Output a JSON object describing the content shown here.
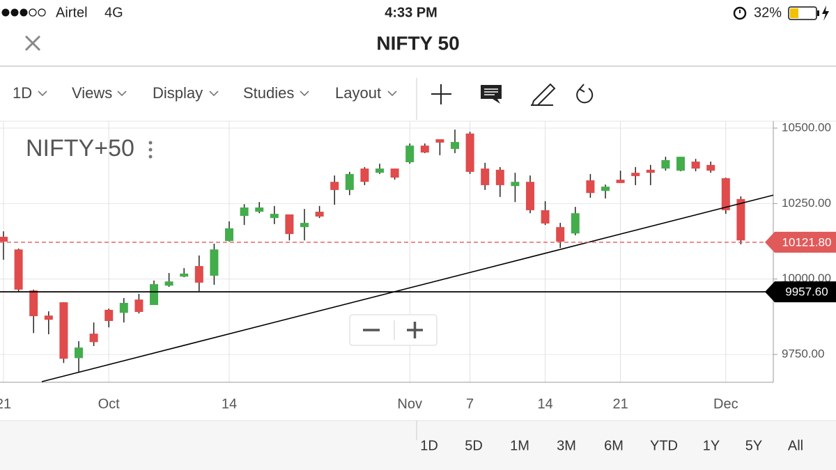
{
  "status_bar": {
    "carrier": "Airtel",
    "network": "4G",
    "time": "4:33 PM",
    "battery": "32%"
  },
  "header": {
    "title": "NIFTY 50"
  },
  "toolbar": {
    "items": [
      "1D",
      "Views",
      "Display",
      "Studies",
      "Layout"
    ]
  },
  "range_bar": {
    "items": [
      "1D",
      "5D",
      "1M",
      "3M",
      "6M",
      "YTD",
      "1Y",
      "5Y",
      "All"
    ]
  },
  "chart_data": {
    "type": "candlestick",
    "title": "NIFTY+50",
    "categories": [
      "21",
      null,
      null,
      null,
      null,
      null,
      null,
      "Oct",
      null,
      null,
      null,
      null,
      null,
      null,
      null,
      "14",
      null,
      null,
      null,
      null,
      null,
      null,
      null,
      null,
      null,
      null,
      null,
      "Nov",
      null,
      null,
      null,
      "7",
      null,
      null,
      null,
      null,
      "14",
      null,
      null,
      null,
      null,
      "21",
      null,
      null,
      null,
      null,
      null,
      null,
      "Dec",
      null
    ],
    "open": [
      10140,
      10098,
      9962,
      9879,
      9923,
      9738,
      9819,
      9898,
      9888,
      9932,
      9914,
      9978,
      10008,
      10043,
      10011,
      10126,
      10209,
      10223,
      10202,
      10214,
      10172,
      10223,
      10322,
      10295,
      10366,
      10352,
      10366,
      10387,
      10442,
      10463,
      10431,
      10482,
      10366,
      10362,
      10308,
      10322,
      10228,
      10172,
      10151,
      10327,
      10292,
      10329,
      10352,
      10362,
      10366,
      10359,
      10389,
      10378,
      10334,
      10265
    ],
    "high": [
      10158,
      10101,
      9965,
      9893,
      9923,
      9794,
      9856,
      9902,
      9937,
      9951,
      9995,
      10020,
      10036,
      10078,
      10117,
      10191,
      10248,
      10255,
      10242,
      10214,
      10232,
      10242,
      10343,
      10355,
      10371,
      10382,
      10366,
      10449,
      10449,
      10463,
      10495,
      10488,
      10385,
      10371,
      10352,
      10343,
      10258,
      10186,
      10239,
      10348,
      10313,
      10359,
      10371,
      10378,
      10405,
      10405,
      10398,
      10389,
      10336,
      10274
    ],
    "low": [
      10064,
      9960,
      9821,
      9817,
      9722,
      9692,
      9778,
      9840,
      9856,
      9886,
      9914,
      9974,
      10006,
      9960,
      9981,
      10124,
      10179,
      10218,
      10182,
      10128,
      10128,
      10202,
      10246,
      10278,
      10311,
      10348,
      10329,
      10382,
      10417,
      10410,
      10417,
      10348,
      10295,
      10272,
      10255,
      10218,
      10179,
      10103,
      10145,
      10269,
      10267,
      10318,
      10311,
      10311,
      10359,
      10357,
      10357,
      10352,
      10216,
      10115
    ],
    "close": [
      10124,
      9965,
      9877,
      9865,
      9736,
      9773,
      9791,
      9861,
      9921,
      9891,
      9983,
      9992,
      10018,
      9988,
      10098,
      10168,
      10237,
      10237,
      10216,
      10149,
      10186,
      10207,
      10295,
      10348,
      10322,
      10366,
      10336,
      10442,
      10419,
      10452,
      10454,
      10355,
      10311,
      10311,
      10322,
      10228,
      10184,
      10124,
      10218,
      10285,
      10306,
      10318,
      10341,
      10352,
      10394,
      10405,
      10366,
      10359,
      10228,
      10128
    ],
    "up_color": "#43ad4c",
    "down_color": "#e04b4b",
    "ylim": [
      9658,
      10523
    ],
    "yticks": [
      {
        "value": 9750,
        "label": "9750.00"
      },
      {
        "value": 10000,
        "label": "10000.00"
      },
      {
        "value": 10250,
        "label": "10250.00"
      },
      {
        "value": 10500,
        "label": "10500.00"
      }
    ],
    "grid": true,
    "price_lines": [
      {
        "value": 10121.8,
        "label": "10121.80",
        "color": "#e05a5a"
      },
      {
        "value": 9957.6,
        "label": "9957.60",
        "color": "#000000"
      }
    ],
    "trendline": {
      "values": [
        9660,
        10278
      ],
      "color": "#000000"
    }
  }
}
